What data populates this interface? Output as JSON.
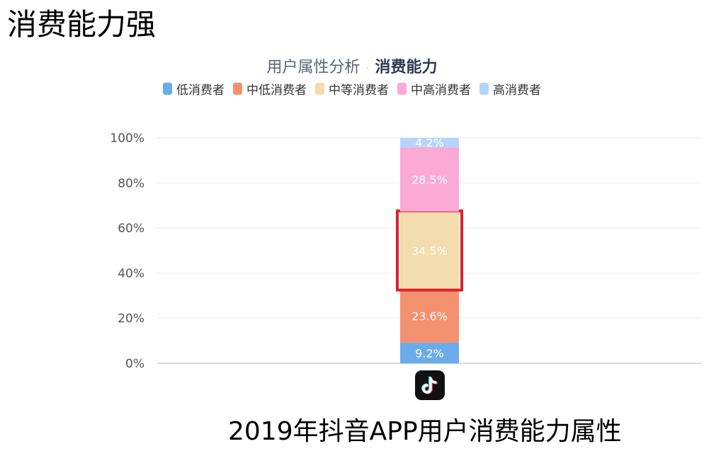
{
  "page_heading": "消费能力强",
  "caption": "2019年抖音APP用户消费能力属性",
  "chart_data": {
    "type": "bar",
    "stacked": true,
    "title_prefix": "用户属性分析",
    "title_separator": "·",
    "title": "消费能力",
    "categories": [
      "抖音"
    ],
    "y_tick_labels": [
      "0%",
      "20%",
      "40%",
      "60%",
      "80%",
      "100%"
    ],
    "ylim": [
      0,
      100
    ],
    "grid": true,
    "legend_position": "top-center",
    "series": [
      {
        "name": "低消费者",
        "values": [
          9.2
        ],
        "label": "9.2%",
        "color": "#6aabea"
      },
      {
        "name": "中低消费者",
        "values": [
          23.6
        ],
        "label": "23.6%",
        "color": "#f4916e"
      },
      {
        "name": "中等消费者",
        "values": [
          34.5
        ],
        "label": "34.5%",
        "color": "#f3dcae",
        "highlighted": true
      },
      {
        "name": "中高消费者",
        "values": [
          28.5
        ],
        "label": "28.5%",
        "color": "#fba9d5"
      },
      {
        "name": "高消费者",
        "values": [
          4.2
        ],
        "label": "4.2%",
        "color": "#b4d4fb"
      }
    ],
    "highlight_color": "#e0202a",
    "category_icon": "tiktok-logo-icon"
  }
}
